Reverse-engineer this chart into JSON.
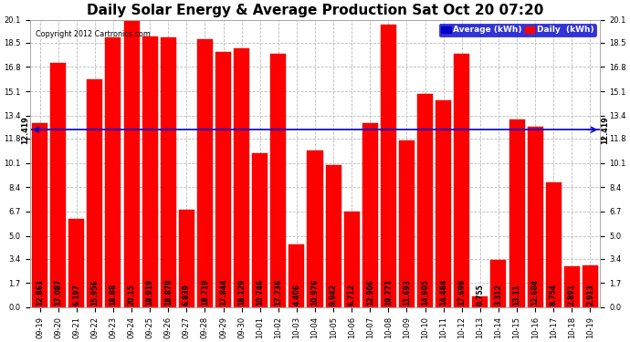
{
  "title": "Daily Solar Energy & Average Production Sat Oct 20 07:20",
  "copyright": "Copyright 2012 Cartronics.com",
  "categories": [
    "09-19",
    "09-20",
    "09-21",
    "09-22",
    "09-23",
    "09-24",
    "09-25",
    "09-26",
    "09-27",
    "09-28",
    "09-29",
    "09-30",
    "10-01",
    "10-02",
    "10-03",
    "10-04",
    "10-05",
    "10-06",
    "10-07",
    "10-08",
    "10-09",
    "10-10",
    "10-11",
    "10-12",
    "10-13",
    "10-14",
    "10-15",
    "10-16",
    "10-17",
    "10-18",
    "10-19"
  ],
  "values": [
    12.861,
    17.087,
    6.197,
    15.956,
    18.88,
    20.15,
    18.919,
    18.879,
    6.839,
    18.719,
    17.844,
    18.129,
    10.746,
    17.736,
    4.406,
    10.976,
    9.942,
    6.712,
    12.906,
    19.771,
    11.693,
    14.905,
    14.484,
    17.698,
    0.755,
    3.312,
    13.11,
    12.604,
    8.754,
    2.891,
    2.913
  ],
  "average": 12.419,
  "bar_color": "#ff0000",
  "bar_edge_color": "#cc0000",
  "average_color": "#0000cc",
  "ylim": [
    0.0,
    20.1
  ],
  "yticks": [
    0.0,
    1.7,
    3.4,
    5.0,
    6.7,
    8.4,
    10.1,
    11.8,
    13.4,
    15.1,
    16.8,
    18.5,
    20.1
  ],
  "bg_color": "#ffffff",
  "plot_bg_color": "#ffffff",
  "grid_color": "#bbbbbb",
  "title_fontsize": 11,
  "label_fontsize": 5.8,
  "tick_fontsize": 6.0,
  "val_fontsize": 5.5,
  "legend_avg_label": "Average (kWh)",
  "legend_daily_label": "Daily  (kWh)"
}
